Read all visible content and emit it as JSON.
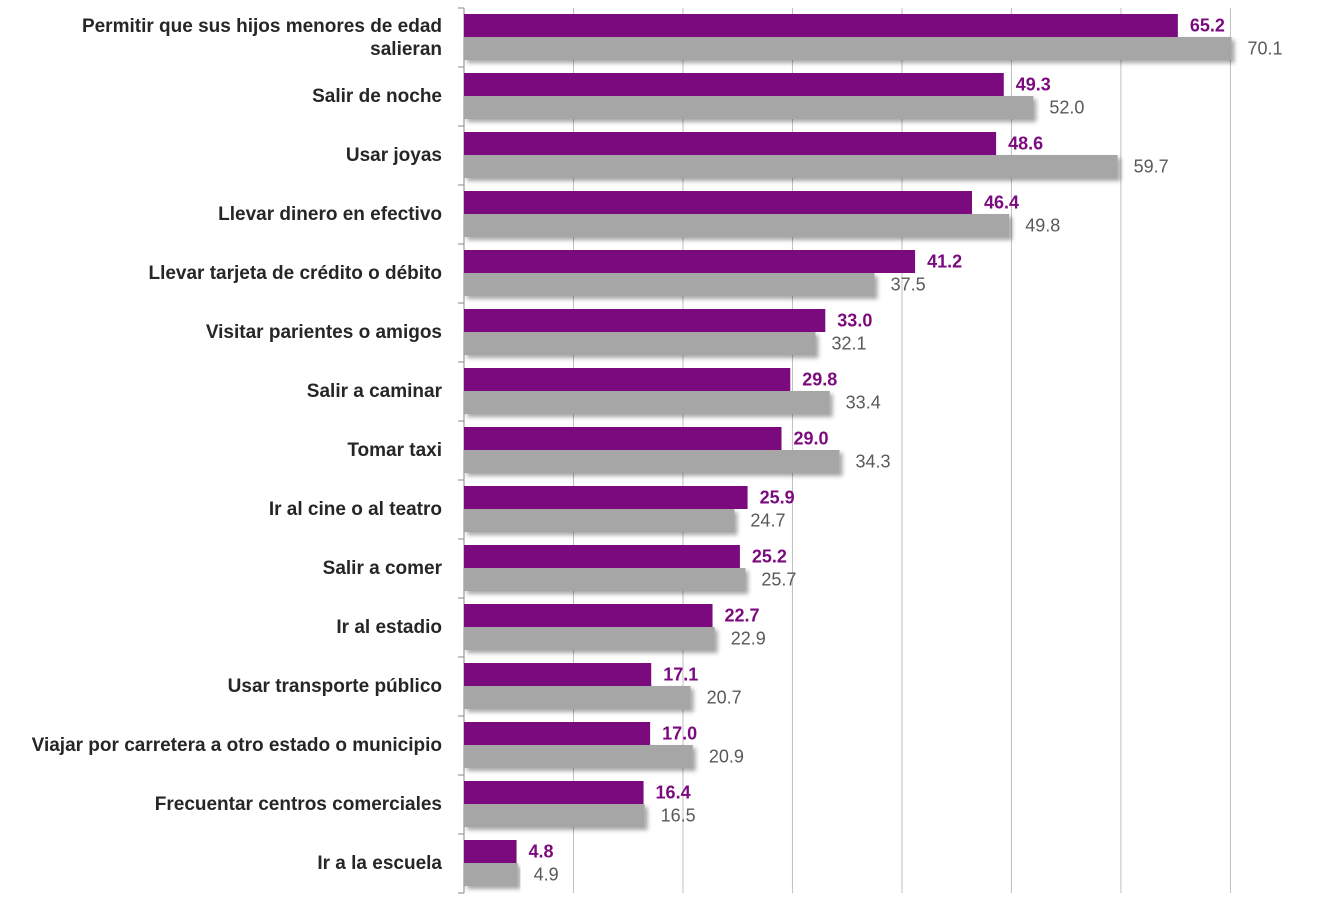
{
  "chart_data": {
    "type": "hbar",
    "categories": [
      "Permitir que sus hijos menores de edad salieran",
      "Salir de noche",
      "Usar joyas",
      "Llevar dinero en efectivo",
      "Llevar tarjeta de crédito o débito",
      "Visitar parientes o amigos",
      "Salir a caminar",
      "Tomar taxi",
      "Ir al cine o al teatro",
      "Salir a comer",
      "Ir al estadio",
      "Usar transporte público",
      "Viajar por carretera a otro estado o municipio",
      "Frecuentar centros comerciales",
      "Ir a la escuela"
    ],
    "series": [
      {
        "color": "#7b0a7f",
        "values": [
          65.2,
          49.3,
          48.6,
          46.4,
          41.2,
          33.0,
          29.8,
          29.0,
          25.9,
          25.2,
          22.7,
          17.1,
          17.0,
          16.4,
          4.8
        ],
        "value_labels": [
          "65.2",
          "49.3",
          "48.6",
          "46.4",
          "41.2",
          "33.0",
          "29.8",
          "29.0",
          "25.9",
          "25.2",
          "22.7",
          "17.1",
          "17.0",
          "16.4",
          "4.8"
        ]
      },
      {
        "color": "#a6a6a6",
        "values": [
          70.1,
          52.0,
          59.7,
          49.8,
          37.5,
          32.1,
          33.4,
          34.3,
          24.7,
          25.7,
          22.9,
          20.7,
          20.9,
          16.5,
          4.9
        ],
        "value_labels": [
          "70.1",
          "52.0",
          "59.7",
          "49.8",
          "37.5",
          "32.1",
          "33.4",
          "34.3",
          "24.7",
          "25.7",
          "22.9",
          "20.7",
          "20.9",
          "16.5",
          "4.9"
        ]
      }
    ],
    "xlim": [
      0,
      78
    ],
    "xticks": [
      0,
      10,
      20,
      30,
      40,
      50,
      60,
      70
    ],
    "grid": true
  }
}
